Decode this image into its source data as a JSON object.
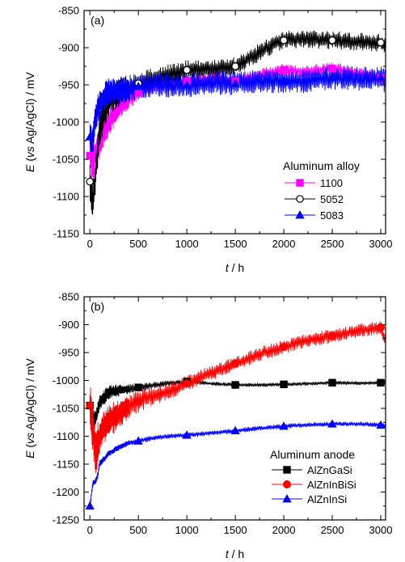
{
  "chart_data": [
    {
      "type": "line",
      "panel_label": "(a)",
      "xlabel_var": "t",
      "xlabel_unit": " / h",
      "ylabel_var": "E",
      "ylabel_rest": " (vs Ag/AgCl) / mV",
      "xlim": [
        -60,
        3050
      ],
      "ylim": [
        -1150,
        -850
      ],
      "xticks": [
        0,
        500,
        1000,
        1500,
        2000,
        2500,
        3000
      ],
      "yticks": [
        -1150,
        -1100,
        -1050,
        -1000,
        -950,
        -900,
        -850
      ],
      "legend": {
        "title": "Aluminum alloy",
        "position": "bottom-right"
      },
      "series": [
        {
          "name": "1100",
          "color": "#ff00ff",
          "marker": "square-filled",
          "amplitude": [
            25,
            8
          ],
          "x": [
            0,
            30,
            60,
            100,
            150,
            200,
            300,
            400,
            500,
            700,
            1000,
            1300,
            1500,
            1800,
            2000,
            2200,
            2500,
            2800,
            3000,
            3050
          ],
          "y": [
            -1045,
            -1060,
            -1040,
            -1030,
            -1010,
            -1000,
            -980,
            -970,
            -960,
            -950,
            -945,
            -940,
            -945,
            -935,
            -930,
            -932,
            -928,
            -935,
            -940,
            -945
          ]
        },
        {
          "name": "5052",
          "color": "#000000",
          "marker": "circle-open",
          "amplitude": [
            28,
            12
          ],
          "x": [
            0,
            30,
            60,
            100,
            150,
            200,
            300,
            400,
            500,
            700,
            1000,
            1300,
            1500,
            1700,
            1900,
            2000,
            2200,
            2500,
            2800,
            3000,
            3050
          ],
          "y": [
            -1080,
            -1110,
            -1070,
            -1010,
            -985,
            -970,
            -960,
            -955,
            -948,
            -940,
            -930,
            -928,
            -925,
            -910,
            -895,
            -890,
            -888,
            -890,
            -892,
            -893,
            -900
          ]
        },
        {
          "name": "5083",
          "color": "#0000ff",
          "marker": "triangle-filled",
          "amplitude": [
            22,
            16
          ],
          "x": [
            0,
            30,
            60,
            100,
            150,
            200,
            300,
            400,
            500,
            700,
            1000,
            1300,
            1500,
            1800,
            2000,
            2200,
            2500,
            2800,
            3000,
            3050
          ],
          "y": [
            -1020,
            -1030,
            -990,
            -975,
            -965,
            -960,
            -958,
            -955,
            -952,
            -950,
            -950,
            -947,
            -948,
            -945,
            -945,
            -945,
            -940,
            -942,
            -940,
            -945
          ]
        }
      ]
    },
    {
      "type": "line",
      "panel_label": "(b)",
      "xlabel_var": "t",
      "xlabel_unit": " / h",
      "ylabel_var": "E",
      "ylabel_rest": " (vs Ag/AgCl) / mV",
      "xlim": [
        -60,
        3050
      ],
      "ylim": [
        -1250,
        -850
      ],
      "xticks": [
        0,
        500,
        1000,
        1500,
        2000,
        2500,
        3000
      ],
      "yticks": [
        -1250,
        -1200,
        -1150,
        -1100,
        -1050,
        -1000,
        -950,
        -900,
        -850
      ],
      "legend": {
        "title": "Aluminum anode",
        "position": "bottom-right"
      },
      "series": [
        {
          "name": "AlZnGaSi",
          "color": "#000000",
          "marker": "square-filled",
          "amplitude": [
            20,
            3
          ],
          "x": [
            0,
            30,
            60,
            100,
            150,
            200,
            300,
            400,
            600,
            800,
            1000,
            1200,
            1500,
            1800,
            2000,
            2200,
            2500,
            2800,
            3000,
            3050
          ],
          "y": [
            -1045,
            -1065,
            -1070,
            -1040,
            -1030,
            -1020,
            -1018,
            -1015,
            -1010,
            -1005,
            -1002,
            -1005,
            -1008,
            -1008,
            -1007,
            -1006,
            -1004,
            -1005,
            -1004,
            -1005
          ]
        },
        {
          "name": "AlZnInBiSi",
          "color": "#ff0000",
          "marker": "circle-filled",
          "amplitude": [
            45,
            12
          ],
          "x": [
            0,
            30,
            60,
            100,
            150,
            200,
            300,
            400,
            600,
            800,
            1000,
            1200,
            1500,
            1800,
            2000,
            2200,
            2500,
            2800,
            3000,
            3050
          ],
          "y": [
            -1045,
            -1090,
            -1130,
            -1100,
            -1080,
            -1070,
            -1060,
            -1045,
            -1030,
            -1020,
            -1005,
            -990,
            -970,
            -950,
            -940,
            -930,
            -920,
            -910,
            -905,
            -930
          ]
        },
        {
          "name": "AlZnInSi",
          "color": "#0000ff",
          "marker": "triangle-filled",
          "amplitude": [
            6,
            4
          ],
          "x": [
            0,
            30,
            60,
            80,
            100,
            150,
            200,
            300,
            400,
            600,
            800,
            1000,
            1200,
            1500,
            1800,
            2000,
            2200,
            2500,
            2800,
            3000,
            3050
          ],
          "y": [
            -1225,
            -1185,
            -1180,
            -1170,
            -1150,
            -1140,
            -1130,
            -1120,
            -1112,
            -1105,
            -1100,
            -1098,
            -1095,
            -1090,
            -1085,
            -1082,
            -1080,
            -1078,
            -1078,
            -1080,
            -1082
          ]
        }
      ]
    }
  ]
}
